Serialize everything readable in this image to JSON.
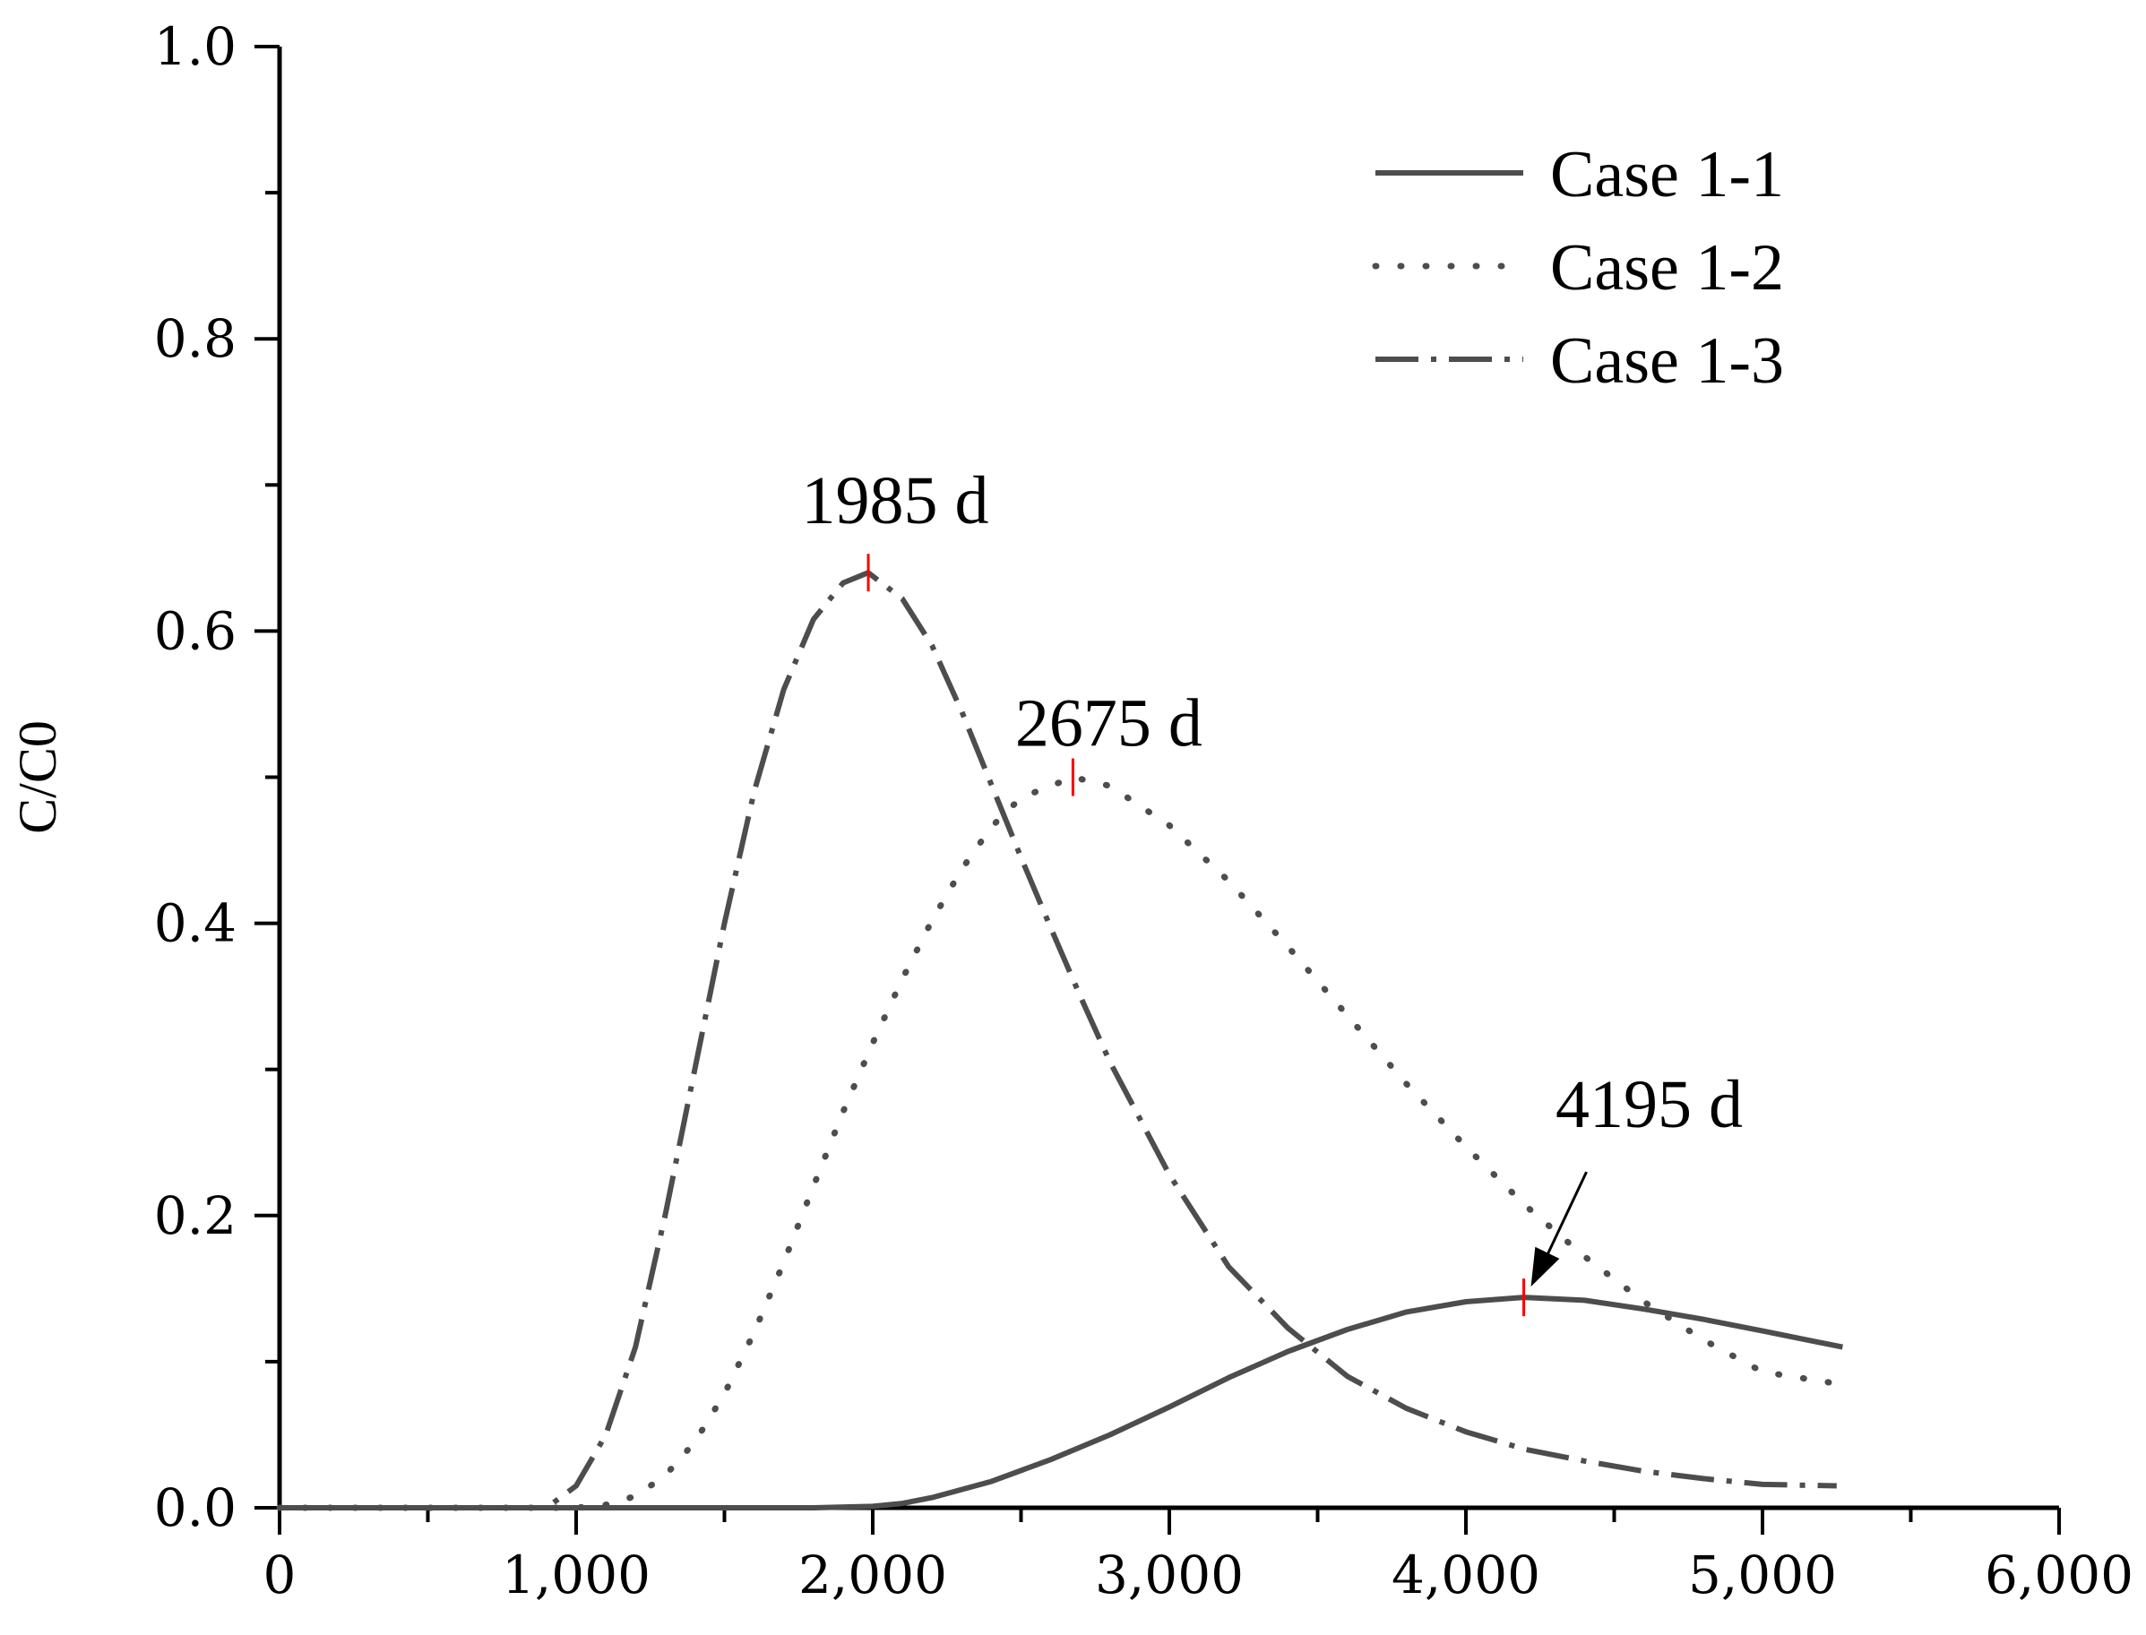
{
  "chart_data": {
    "type": "line",
    "title": "",
    "xlabel": "",
    "ylabel": "C/C0",
    "xlim": [
      0,
      6000
    ],
    "ylim": [
      0,
      1.0
    ],
    "x_ticks": [
      0,
      1000,
      2000,
      3000,
      4000,
      5000,
      6000
    ],
    "x_tick_labels": [
      "0",
      "1,000",
      "2,000",
      "3,000",
      "4,000",
      "5,000",
      "6,000"
    ],
    "y_ticks": [
      0,
      0.2,
      0.4,
      0.6,
      0.8,
      1.0
    ],
    "y_tick_labels": [
      "0.0",
      "0.2",
      "0.4",
      "0.6",
      "0.8",
      "1.0"
    ],
    "grid": false,
    "legend_position": "top-right",
    "line_color": "#4d4d4d",
    "marker_color": "#ff0000",
    "series": [
      {
        "name": "Case 1-1",
        "style": "solid",
        "x": [
          0,
          1800,
          2000,
          2100,
          2200,
          2400,
          2600,
          2800,
          3000,
          3200,
          3400,
          3600,
          3800,
          4000,
          4195,
          4400,
          4600,
          4800,
          5000,
          5270
        ],
        "y": [
          0,
          0,
          0.001,
          0.003,
          0.007,
          0.018,
          0.033,
          0.05,
          0.069,
          0.089,
          0.107,
          0.122,
          0.134,
          0.141,
          0.144,
          0.142,
          0.136,
          0.129,
          0.121,
          0.11
        ]
      },
      {
        "name": "Case 1-2",
        "style": "dotted",
        "x": [
          0,
          1000,
          1100,
          1200,
          1300,
          1400,
          1500,
          1600,
          1700,
          1800,
          1900,
          2000,
          2100,
          2200,
          2300,
          2400,
          2500,
          2675,
          2800,
          3000,
          3200,
          3400,
          3600,
          3800,
          4000,
          4200,
          4400,
          4600,
          4800,
          5000,
          5250
        ],
        "y": [
          0,
          0,
          0.002,
          0.008,
          0.022,
          0.045,
          0.078,
          0.12,
          0.168,
          0.22,
          0.271,
          0.318,
          0.362,
          0.402,
          0.437,
          0.466,
          0.486,
          0.5,
          0.494,
          0.467,
          0.429,
          0.384,
          0.337,
          0.29,
          0.247,
          0.207,
          0.172,
          0.141,
          0.115,
          0.093,
          0.085
        ]
      },
      {
        "name": "Case 1-3",
        "style": "dash-dot",
        "x": [
          0,
          900,
          1000,
          1100,
          1200,
          1300,
          1400,
          1500,
          1600,
          1700,
          1800,
          1900,
          1985,
          2100,
          2200,
          2300,
          2400,
          2500,
          2600,
          2700,
          2800,
          3000,
          3200,
          3400,
          3600,
          3800,
          4000,
          4200,
          4400,
          4600,
          4800,
          5000,
          5250
        ],
        "y": [
          0,
          0,
          0.015,
          0.05,
          0.11,
          0.2,
          0.3,
          0.4,
          0.49,
          0.56,
          0.608,
          0.633,
          0.64,
          0.622,
          0.59,
          0.545,
          0.495,
          0.445,
          0.397,
          0.35,
          0.305,
          0.228,
          0.165,
          0.123,
          0.09,
          0.068,
          0.052,
          0.04,
          0.032,
          0.025,
          0.02,
          0.016,
          0.015
        ]
      }
    ],
    "annotations": [
      {
        "text": "1985 d",
        "x": 1985,
        "y": 0.64
      },
      {
        "text": "2675 d",
        "x": 2675,
        "y": 0.5
      },
      {
        "text": "4195 d",
        "x": 4195,
        "y": 0.144
      }
    ]
  }
}
